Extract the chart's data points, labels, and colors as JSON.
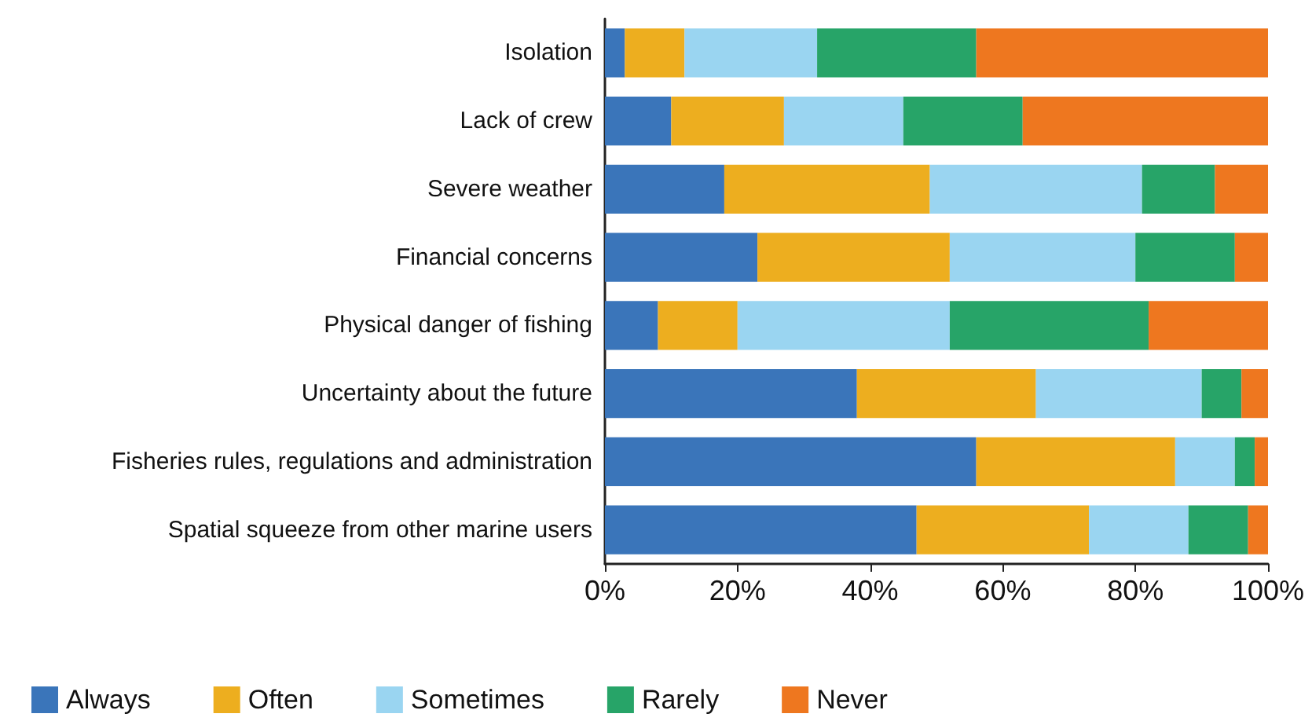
{
  "chart_data": {
    "type": "bar",
    "orientation": "horizontal",
    "stacked": true,
    "categories": [
      "Isolation",
      "Lack of crew",
      "Severe weather",
      "Financial concerns",
      "Physical danger of fishing",
      "Uncertainty about the future",
      "Fisheries rules, regulations and administration",
      "Spatial squeeze from other marine users"
    ],
    "series": [
      {
        "name": "Always",
        "color": "#3a75ba",
        "values": [
          3,
          10,
          18,
          23,
          8,
          38,
          56,
          47
        ]
      },
      {
        "name": "Often",
        "color": "#edae1f",
        "values": [
          9,
          17,
          31,
          29,
          12,
          27,
          30,
          26
        ]
      },
      {
        "name": "Sometimes",
        "color": "#9ad5f1",
        "values": [
          20,
          18,
          32,
          28,
          32,
          25,
          9,
          15
        ]
      },
      {
        "name": "Rarely",
        "color": "#27a468",
        "values": [
          24,
          18,
          11,
          15,
          30,
          6,
          3,
          9
        ]
      },
      {
        "name": "Never",
        "color": "#ee771f",
        "values": [
          44,
          37,
          8,
          5,
          18,
          4,
          2,
          3
        ]
      }
    ],
    "xlim": [
      0,
      100
    ],
    "xticks": [
      {
        "value": 0,
        "label": "0%"
      },
      {
        "value": 20,
        "label": "20%"
      },
      {
        "value": 40,
        "label": "40%"
      },
      {
        "value": 60,
        "label": "60%"
      },
      {
        "value": 80,
        "label": "80%"
      },
      {
        "value": 100,
        "label": "100%"
      }
    ],
    "grid": false,
    "legend": "bottom left"
  }
}
